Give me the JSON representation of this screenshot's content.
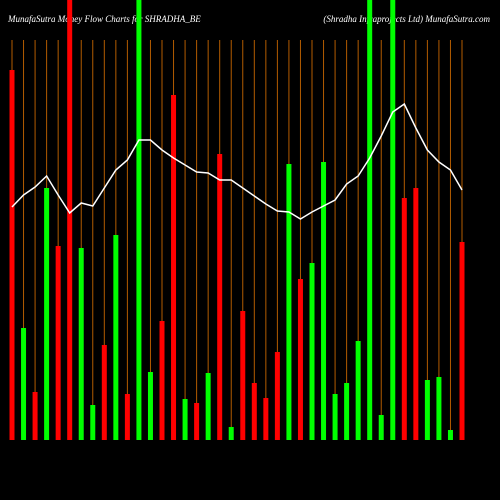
{
  "chart_data": {
    "type": "bar",
    "title": "MunafaSutra Money Flow Charts for SHRADHA_BE",
    "subtitle": "(Shradha Infraprojects Ltd) MunafaSutra.com",
    "ylim": [
      0,
      440
    ],
    "values": [
      370,
      112,
      48,
      252,
      194,
      440,
      192,
      35,
      95,
      205,
      46,
      440,
      68,
      119,
      345,
      41,
      37,
      67,
      286,
      13,
      129,
      57,
      42,
      88,
      276,
      161,
      177,
      278,
      46,
      57,
      99,
      440,
      25,
      440,
      242,
      252,
      60,
      63,
      10,
      198
    ],
    "colors": [
      "#ff0000",
      "#00ff00",
      "#ff0000",
      "#00ff00",
      "#ff0000",
      "#ff0000",
      "#00ff00",
      "#00ff00",
      "#ff0000",
      "#00ff00",
      "#ff0000",
      "#00ff00",
      "#00ff00",
      "#ff0000",
      "#ff0000",
      "#00ff00",
      "#ff0000",
      "#00ff00",
      "#ff0000",
      "#00ff00",
      "#ff0000",
      "#ff0000",
      "#ff0000",
      "#ff0000",
      "#00ff00",
      "#ff0000",
      "#00ff00",
      "#00ff00",
      "#00ff00",
      "#00ff00",
      "#00ff00",
      "#00ff00",
      "#00ff00",
      "#00ff00",
      "#ff0000",
      "#ff0000",
      "#00ff00",
      "#00ff00",
      "#00ff00",
      "#ff0000"
    ],
    "line": {
      "color": "#ffffff",
      "values": [
        233,
        245,
        253,
        264,
        245,
        227,
        237,
        234,
        252,
        270,
        280,
        300,
        300,
        290,
        282,
        275,
        268,
        267,
        260,
        260,
        252,
        244,
        236,
        229,
        228,
        221,
        228,
        234,
        240,
        256,
        264,
        282,
        304,
        328,
        336,
        312,
        290,
        278,
        270,
        250
      ]
    },
    "gridline_color": "#b35c00"
  }
}
